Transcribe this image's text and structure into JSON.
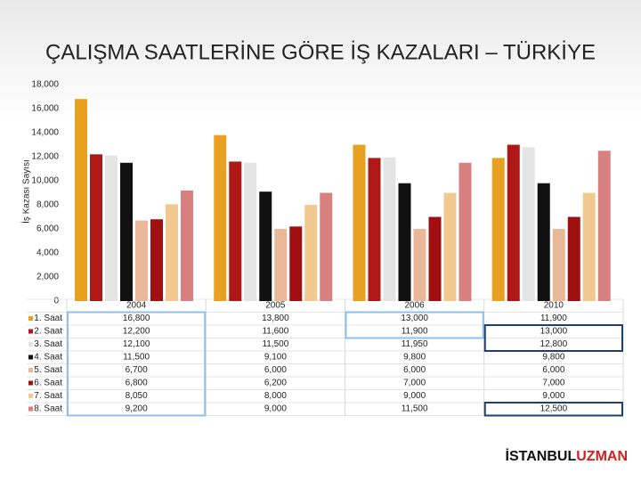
{
  "chart_data": {
    "type": "bar",
    "title": "ÇALIŞMA SAATLERİNE GÖRE İŞ KAZALARI – TÜRKİYE",
    "y_label": "İş Kazası Sayısı",
    "categories": [
      "2004",
      "2005",
      "2006",
      "2010"
    ],
    "series": [
      {
        "name": "1. Saat",
        "color": "#e8a020",
        "values": [
          16800,
          13800,
          13000,
          11900
        ],
        "value_labels": [
          "16,800",
          "13,800",
          "13,000",
          "11,900"
        ]
      },
      {
        "name": "2. Saat",
        "color": "#b01818",
        "values": [
          12200,
          11600,
          11900,
          13000
        ],
        "value_labels": [
          "12,200",
          "11,600",
          "11,900",
          "13,000"
        ]
      },
      {
        "name": "3. Saat",
        "color": "#e4e4e4",
        "values": [
          12100,
          11500,
          11950,
          12800
        ],
        "value_labels": [
          "12,100",
          "11,500",
          "11,950",
          "12,800"
        ]
      },
      {
        "name": "4. Saat",
        "color": "#111111",
        "values": [
          11500,
          9100,
          9800,
          9800
        ],
        "value_labels": [
          "11,500",
          "9,100",
          "9,800",
          "9,800"
        ]
      },
      {
        "name": "5. Saat",
        "color": "#e8b898",
        "values": [
          6700,
          6000,
          6000,
          6000
        ],
        "value_labels": [
          "6,700",
          "6,000",
          "6,000",
          "6,000"
        ]
      },
      {
        "name": "6. Saat",
        "color": "#a01010",
        "values": [
          6800,
          6200,
          7000,
          7000
        ],
        "value_labels": [
          "6,800",
          "6,200",
          "7,000",
          "7,000"
        ]
      },
      {
        "name": "7. Saat",
        "color": "#f0c890",
        "values": [
          8050,
          8000,
          9000,
          9000
        ],
        "value_labels": [
          "8,050",
          "8,000",
          "9,000",
          "9,000"
        ]
      },
      {
        "name": "8. Saat",
        "color": "#d88080",
        "values": [
          9200,
          9000,
          11500,
          12500
        ],
        "value_labels": [
          "9,200",
          "9,000",
          "11,500",
          "12,500"
        ]
      }
    ],
    "ylim": [
      0,
      18000
    ],
    "yticks": [
      0,
      {
        "value": 2000,
        "label": "2,000"
      },
      {
        "value": 4000,
        "label": "4,000"
      },
      {
        "value": 6000,
        "label": "6,000"
      },
      {
        "value": 8000,
        "label": "8,000"
      },
      {
        "value": 10000,
        "label": "10,000"
      },
      {
        "value": 12000,
        "label": "12,000"
      },
      {
        "value": 14000,
        "label": "14,000"
      },
      {
        "value": 16000,
        "label": "16,000"
      },
      {
        "value": 18000,
        "label": "18,000"
      }
    ]
  },
  "footer": {
    "brand_main": "İSTANBUL",
    "brand_accent": "UZMAN"
  }
}
